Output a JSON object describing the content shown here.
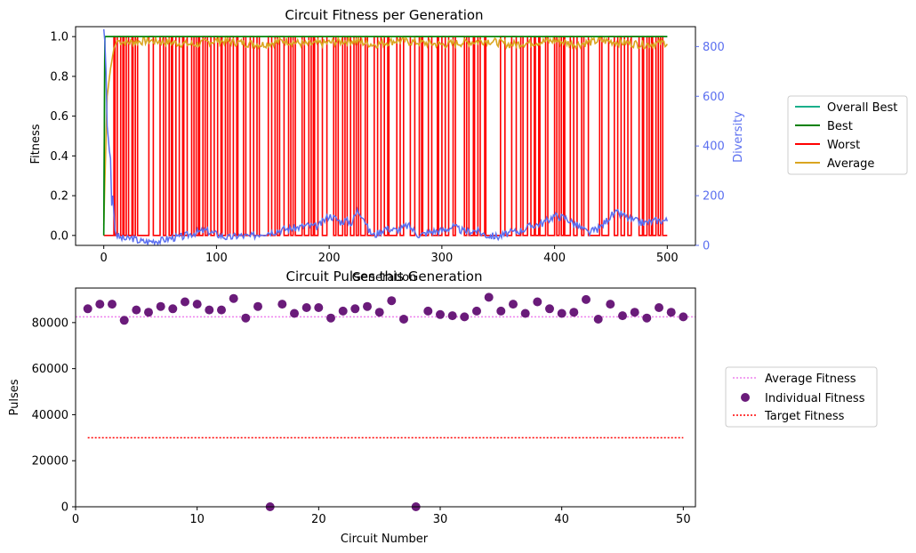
{
  "colors": {
    "overall_best": "#1aaf8b",
    "best": "#008000",
    "worst": "#ff0000",
    "average": "#daa520",
    "diversity": "#5b6ff0",
    "avg_fitness_line": "#ee82ee",
    "individual": "#6a1b7a",
    "target": "#ff0000"
  },
  "chart_data": [
    {
      "type": "line",
      "title": "Circuit Fitness per Generation",
      "xlabel": "Generation",
      "ylabel": "Fitness",
      "y2label": "Diversity",
      "xlim": [
        -25,
        525
      ],
      "ylim": [
        -0.05,
        1.05
      ],
      "y2lim": [
        0,
        880
      ],
      "xticks": [
        0,
        100,
        200,
        300,
        400,
        500
      ],
      "yticks": [
        0.0,
        0.2,
        0.4,
        0.6,
        0.8,
        1.0
      ],
      "ytick_labels": [
        "0.0",
        "0.2",
        "0.4",
        "0.6",
        "0.8",
        "1.0"
      ],
      "y2ticks": [
        0,
        200,
        400,
        600,
        800
      ],
      "legend_position": "outside-right",
      "legend": [
        "Overall Best",
        "Best",
        "Worst",
        "Average"
      ],
      "series": [
        {
          "name": "Overall Best",
          "axis": "left",
          "description_values": {
            "x": [
              0,
              1,
              500
            ],
            "y": [
              0.0,
              1.0,
              1.0
            ]
          }
        },
        {
          "name": "Best",
          "axis": "left",
          "values": {
            "x": [
              0,
              1,
              500
            ],
            "y": [
              0.0,
              1.0,
              1.0
            ]
          }
        },
        {
          "name": "Worst",
          "axis": "left",
          "pattern": "switches between 0 and 1",
          "high_intervals": [
            [
              9,
              10
            ],
            [
              12,
              15
            ],
            [
              17,
              18
            ],
            [
              20,
              22
            ],
            [
              25,
              26
            ],
            [
              28,
              30
            ],
            [
              40,
              44
            ],
            [
              50,
              53
            ],
            [
              55,
              58
            ],
            [
              60,
              61
            ],
            [
              64,
              67
            ],
            [
              70,
              71
            ],
            [
              74,
              78
            ],
            [
              80,
              82
            ],
            [
              84,
              85
            ],
            [
              88,
              90
            ],
            [
              92,
              95
            ],
            [
              98,
              101
            ],
            [
              104,
              105
            ],
            [
              108,
              110
            ],
            [
              112,
              115
            ],
            [
              118,
              119
            ],
            [
              124,
              126
            ],
            [
              130,
              133
            ],
            [
              136,
              138
            ],
            [
              146,
              149
            ],
            [
              152,
              154
            ],
            [
              156,
              160
            ],
            [
              164,
              166
            ],
            [
              168,
              170
            ],
            [
              176,
              178
            ],
            [
              182,
              184
            ],
            [
              186,
              187
            ],
            [
              190,
              194
            ],
            [
              198,
              204
            ],
            [
              206,
              208
            ],
            [
              212,
              214
            ],
            [
              216,
              219
            ],
            [
              222,
              224
            ],
            [
              226,
              228
            ],
            [
              232,
              234
            ],
            [
              240,
              243
            ],
            [
              246,
              249
            ],
            [
              252,
              253
            ],
            [
              260,
              263
            ],
            [
              266,
              272
            ],
            [
              276,
              280
            ],
            [
              282,
              283
            ],
            [
              288,
              291
            ],
            [
              296,
              297
            ],
            [
              300,
              303
            ],
            [
              306,
              310
            ],
            [
              312,
              320
            ],
            [
              322,
              324
            ],
            [
              328,
              329
            ],
            [
              332,
              334
            ],
            [
              338,
              339
            ],
            [
              352,
              356
            ],
            [
              362,
              366
            ],
            [
              370,
              372
            ],
            [
              376,
              379
            ],
            [
              382,
              383
            ],
            [
              386,
              387
            ],
            [
              392,
              394
            ],
            [
              400,
              402
            ],
            [
              404,
              406
            ],
            [
              408,
              409
            ],
            [
              414,
              417
            ],
            [
              420,
              424
            ],
            [
              426,
              430
            ],
            [
              440,
              442
            ],
            [
              448,
              453
            ],
            [
              456,
              459
            ],
            [
              462,
              465
            ],
            [
              468,
              475
            ],
            [
              478,
              479
            ],
            [
              482,
              484
            ],
            [
              486,
              487
            ],
            [
              490,
              492
            ],
            [
              494,
              496
            ]
          ]
        },
        {
          "name": "Average",
          "axis": "left",
          "values": {
            "x": [
              0,
              3,
              6,
              9,
              12,
              20,
              40,
              60,
              80,
              100,
              120,
              140,
              160,
              180,
              200,
              220,
              240,
              260,
              280,
              300,
              320,
              340,
              360,
              380,
              400,
              420,
              440,
              460,
              480,
              500
            ],
            "y": [
              0.05,
              0.7,
              0.84,
              0.94,
              0.98,
              0.97,
              0.98,
              0.97,
              0.96,
              0.98,
              0.97,
              0.96,
              0.98,
              0.96,
              0.97,
              0.98,
              0.96,
              0.98,
              0.97,
              0.96,
              0.97,
              0.98,
              0.96,
              0.97,
              0.98,
              0.96,
              0.98,
              0.97,
              0.96,
              0.97
            ]
          }
        },
        {
          "name": "Diversity",
          "axis": "right",
          "values": {
            "x": [
              0,
              1,
              2,
              3,
              4,
              5,
              6,
              7,
              8,
              9,
              10,
              12,
              15,
              20,
              25,
              30,
              35,
              40,
              45,
              50,
              55,
              60,
              70,
              80,
              90,
              100,
              110,
              120,
              130,
              140,
              150,
              160,
              170,
              180,
              190,
              200,
              205,
              210,
              215,
              220,
              225,
              230,
              235,
              240,
              250,
              260,
              270,
              280,
              290,
              300,
              310,
              320,
              330,
              340,
              350,
              360,
              370,
              380,
              390,
              400,
              410,
              420,
              430,
              440,
              450,
              455,
              460,
              465,
              470,
              480,
              490,
              500
            ],
            "y": [
              870,
              820,
              700,
              480,
              430,
              380,
              350,
              160,
              200,
              130,
              60,
              40,
              30,
              25,
              30,
              20,
              15,
              15,
              20,
              18,
              25,
              30,
              35,
              50,
              60,
              45,
              30,
              40,
              35,
              50,
              55,
              65,
              70,
              80,
              75,
              120,
              110,
              95,
              100,
              90,
              140,
              120,
              60,
              40,
              70,
              60,
              80,
              40,
              55,
              60,
              75,
              55,
              60,
              40,
              35,
              50,
              60,
              80,
              90,
              120,
              110,
              80,
              50,
              70,
              120,
              130,
              125,
              110,
              100,
              90,
              100,
              100
            ]
          }
        }
      ]
    },
    {
      "type": "scatter",
      "title": "Circuit Pulses this Generation",
      "xlabel": "Circuit Number",
      "ylabel": "Pulses",
      "xlim": [
        0,
        51
      ],
      "ylim": [
        0,
        95000
      ],
      "xticks": [
        0,
        10,
        20,
        30,
        40,
        50
      ],
      "yticks": [
        0,
        20000,
        40000,
        60000,
        80000
      ],
      "legend_position": "outside-right",
      "legend": [
        "Average Fitness",
        "Individual Fitness",
        "Target Fitness"
      ],
      "average_fitness": 82500,
      "target_fitness": 30000,
      "target_x_range": [
        1,
        50
      ],
      "points": {
        "x": [
          1,
          2,
          3,
          4,
          5,
          6,
          7,
          8,
          9,
          10,
          11,
          12,
          13,
          14,
          15,
          16,
          17,
          18,
          19,
          20,
          21,
          22,
          23,
          24,
          25,
          26,
          27,
          28,
          29,
          30,
          31,
          32,
          33,
          34,
          35,
          36,
          37,
          38,
          39,
          40,
          41,
          42,
          43,
          44,
          45,
          46,
          47,
          48,
          49,
          50
        ],
        "y": [
          86000,
          88000,
          88000,
          81000,
          85500,
          84500,
          87000,
          86000,
          89000,
          88000,
          85500,
          85500,
          90500,
          82000,
          87000,
          0,
          88000,
          84000,
          86500,
          86500,
          82000,
          85000,
          86000,
          87000,
          84500,
          89500,
          81500,
          0,
          85000,
          83500,
          83000,
          82500,
          85000,
          91000,
          85000,
          88000,
          84000,
          89000,
          86000,
          84000,
          84500,
          90000,
          81500,
          88000,
          83000,
          84500,
          82000,
          86500,
          84500,
          82500
        ]
      }
    }
  ]
}
